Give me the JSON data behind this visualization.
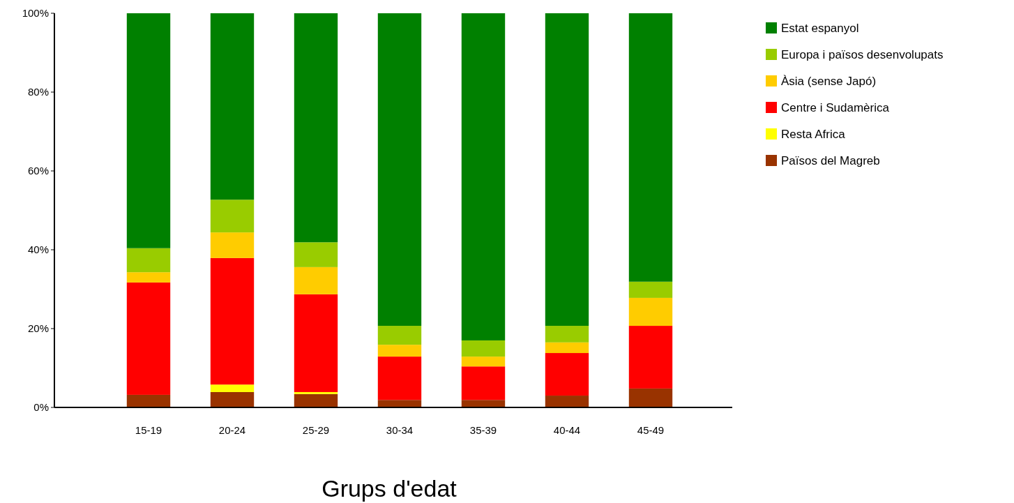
{
  "chart_data": {
    "type": "bar",
    "stacked": true,
    "xlabel": "Grups d'edat",
    "categories": [
      "15-19",
      "20-24",
      "25-29",
      "30-34",
      "35-39",
      "40-44",
      "45-49"
    ],
    "series": [
      {
        "name": "Països del Magreb",
        "color": "#993300",
        "values": [
          3.2,
          3.9,
          3.4,
          1.9,
          1.9,
          3.0,
          4.8
        ]
      },
      {
        "name": "Resta Africa",
        "color": "#ffff00",
        "values": [
          0,
          1.9,
          0.5,
          0,
          0,
          0,
          0
        ]
      },
      {
        "name": "Centre i Sudamèrica",
        "color": "#ff0000",
        "values": [
          28.5,
          32.1,
          24.8,
          11.0,
          8.5,
          10.8,
          15.9
        ]
      },
      {
        "name": "Àsia (sense Japó)",
        "color": "#ffcc00",
        "values": [
          2.6,
          6.5,
          6.9,
          3.0,
          2.5,
          2.7,
          7.1
        ]
      },
      {
        "name": "Europa i països desenvolupats",
        "color": "#99cc00",
        "values": [
          6.1,
          8.3,
          6.3,
          4.8,
          4.1,
          4.2,
          4.1
        ]
      },
      {
        "name": "Estat espanyol",
        "color": "#008000",
        "values": [
          59.6,
          47.3,
          58.1,
          79.3,
          83.0,
          79.3,
          68.1
        ]
      }
    ],
    "ylim": [
      0,
      100
    ],
    "yticks": [
      {
        "value": 0,
        "label": "0%"
      },
      {
        "value": 20,
        "label": "20%"
      },
      {
        "value": 40,
        "label": "40%"
      },
      {
        "value": 60,
        "label": "60%"
      },
      {
        "value": 80,
        "label": "80%"
      },
      {
        "value": 100,
        "label": "100%"
      }
    ],
    "legend": "right"
  }
}
